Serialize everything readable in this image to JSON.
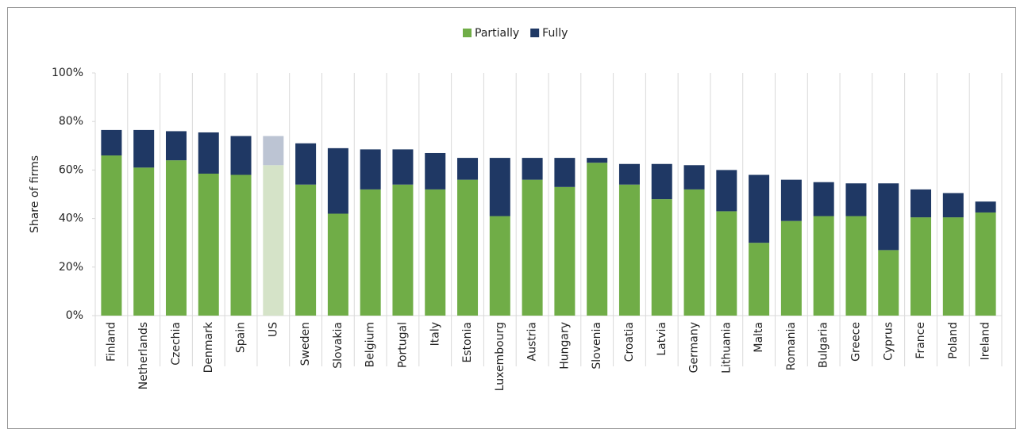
{
  "chart_data": {
    "type": "stacked_bar",
    "y_label": "Share of firms",
    "categories": [
      "Finland",
      "Netherlands",
      "Czechia",
      "Denmark",
      "Spain",
      "US",
      "Sweden",
      "Slovakia",
      "Belgium",
      "Portugal",
      "Italy",
      "Estonia",
      "Luxembourg",
      "Austria",
      "Hungary",
      "Slovenia",
      "Croatia",
      "Latvia",
      "Germany",
      "Lithuania",
      "Malta",
      "Romania",
      "Bulgaria",
      "Greece",
      "Cyprus",
      "France",
      "Poland",
      "Ireland"
    ],
    "series": [
      {
        "name": "Partially",
        "color": "#70ad47",
        "highlight_color": "#d5e3c8",
        "values": [
          66,
          61,
          64,
          58.5,
          58,
          62,
          54,
          42,
          52,
          54,
          52,
          56,
          41,
          56,
          53,
          63,
          54,
          48,
          52,
          43,
          30,
          39,
          41,
          41,
          27,
          40.5,
          40.5,
          42.5
        ]
      },
      {
        "name": "Fully",
        "color": "#1f3864",
        "highlight_color": "#bcc4d3",
        "values": [
          10.5,
          15.5,
          12,
          17,
          16,
          12,
          17,
          27,
          16.5,
          14.5,
          15,
          9,
          24,
          9,
          12,
          2,
          8.5,
          14.5,
          10,
          17,
          28,
          17,
          14,
          13.5,
          27.5,
          11.5,
          10,
          4.5
        ]
      }
    ],
    "highlight": "US",
    "ylim": [
      0,
      100
    ],
    "yticks": [
      {
        "value": 0,
        "label": "0%"
      },
      {
        "value": 20,
        "label": "20%"
      },
      {
        "value": 40,
        "label": "40%"
      },
      {
        "value": 60,
        "label": "60%"
      },
      {
        "value": 80,
        "label": "80%"
      },
      {
        "value": 100,
        "label": "100%"
      }
    ],
    "legend": "top"
  }
}
